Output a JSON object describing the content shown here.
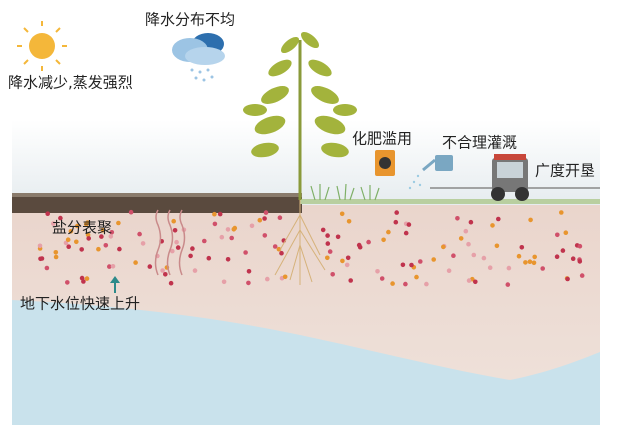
{
  "labels": {
    "evaporation": "降水减少,蒸发强烈",
    "rainfall": "降水分布不均",
    "fertilizer": "化肥滥用",
    "irrigation": "不合理灌溉",
    "reclamation": "广度开垦",
    "salt": "盐分表聚",
    "groundwater": "地下水位快速上升"
  }
}
